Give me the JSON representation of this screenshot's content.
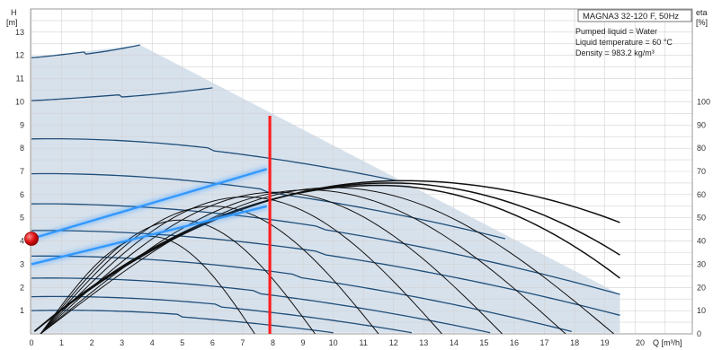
{
  "chart_data": {
    "type": "line",
    "title": "MAGNA3 32-120 F, 50Hz",
    "annotations": [
      "Pumped liquid = Water",
      "Liquid temperature = 60 °C",
      "Density = 983.2 kg/m³"
    ],
    "ylabel": "H",
    "ylabel_unit": "[m]",
    "y2label": "eta",
    "y2label_unit": "[%]",
    "xlabel": "Q [m³/h]",
    "xlim": [
      0,
      21
    ],
    "ylim": [
      0,
      14
    ],
    "y2lim": [
      0,
      100
    ],
    "x_ticks": [
      "0",
      "1",
      "2",
      "3",
      "4",
      "5",
      "6",
      "7",
      "8",
      "9",
      "10",
      "11",
      "12",
      "13",
      "14",
      "15",
      "16",
      "17",
      "18",
      "19",
      "20"
    ],
    "y_ticks": [
      "1",
      "2",
      "3",
      "4",
      "5",
      "6",
      "7",
      "8",
      "9",
      "10",
      "11",
      "12",
      "13"
    ],
    "y2_ticks": [
      "0",
      "10",
      "20",
      "30",
      "40",
      "50",
      "60",
      "70",
      "80",
      "90",
      "100"
    ],
    "grid": true,
    "colors": {
      "area_fill": "#d7e1ec",
      "pump_curves": "#1f4e79",
      "efficiency_curves": "#111111",
      "system_curves": "#3399ff",
      "duty_line": "#ff2020",
      "duty_point": "#cc0000"
    },
    "operating_area_outline": {
      "x": [
        0,
        3.6,
        19.5,
        19.5,
        0
      ],
      "y": [
        11.9,
        12.45,
        1.7,
        0.05,
        0.05
      ]
    },
    "pump_curves": [
      {
        "h0": 11.9,
        "x_end": 3.6,
        "y_end": 12.45
      },
      {
        "h0": 10.05,
        "x_end": 6.0,
        "y_end": 10.6
      },
      {
        "h0": 8.4,
        "x_end": 12.1,
        "y_end": 6.6
      },
      {
        "h0": 6.9,
        "x_end": 15.7,
        "y_end": 4.1
      },
      {
        "h0": 5.6,
        "x_end": 19.5,
        "y_end": 1.7
      },
      {
        "h0": 4.45,
        "x_end": 19.5,
        "y_end": 0.8
      },
      {
        "h0": 3.35,
        "x_end": 17.9,
        "y_end": 0.1
      },
      {
        "h0": 2.4,
        "x_end": 15.2,
        "y_end": 0.05
      },
      {
        "h0": 1.6,
        "x_end": 12.6,
        "y_end": 0.05
      },
      {
        "h0": 1.0,
        "x_end": 10.0,
        "y_end": 0.05
      }
    ],
    "efficiency_curves": [
      {
        "peak_x": 12.3,
        "peak_eta": 66,
        "end_x": 19.5,
        "end_eta": 48
      },
      {
        "peak_x": 11.9,
        "peak_eta": 65,
        "end_x": 19.5,
        "end_eta": 34
      },
      {
        "peak_x": 11.5,
        "peak_eta": 64,
        "end_x": 19.5,
        "end_eta": 24
      }
    ],
    "local_efficiency_arcs": [
      {
        "x0": 0.3,
        "x1": 7.4,
        "peak": 4.2
      },
      {
        "x0": 0.3,
        "x1": 9.4,
        "peak": 4.9
      },
      {
        "x0": 0.3,
        "x1": 11.5,
        "peak": 5.5
      },
      {
        "x0": 0.3,
        "x1": 13.6,
        "peak": 5.9
      },
      {
        "x0": 0.3,
        "x1": 15.6,
        "peak": 6.1
      },
      {
        "x0": 0.3,
        "x1": 17.7,
        "peak": 6.2
      },
      {
        "x0": 0.3,
        "x1": 19.3,
        "peak": 6.3
      }
    ],
    "system_curves": [
      {
        "x": [
          0,
          7.8
        ],
        "y": [
          4.1,
          7.1
        ]
      },
      {
        "x": [
          0,
          7.8
        ],
        "y": [
          3.0,
          5.5
        ]
      }
    ],
    "duty_line": {
      "x": 7.9,
      "y_min": 0,
      "y_max": 9.4
    },
    "duty_point": {
      "x": 0,
      "y": 4.1
    }
  }
}
